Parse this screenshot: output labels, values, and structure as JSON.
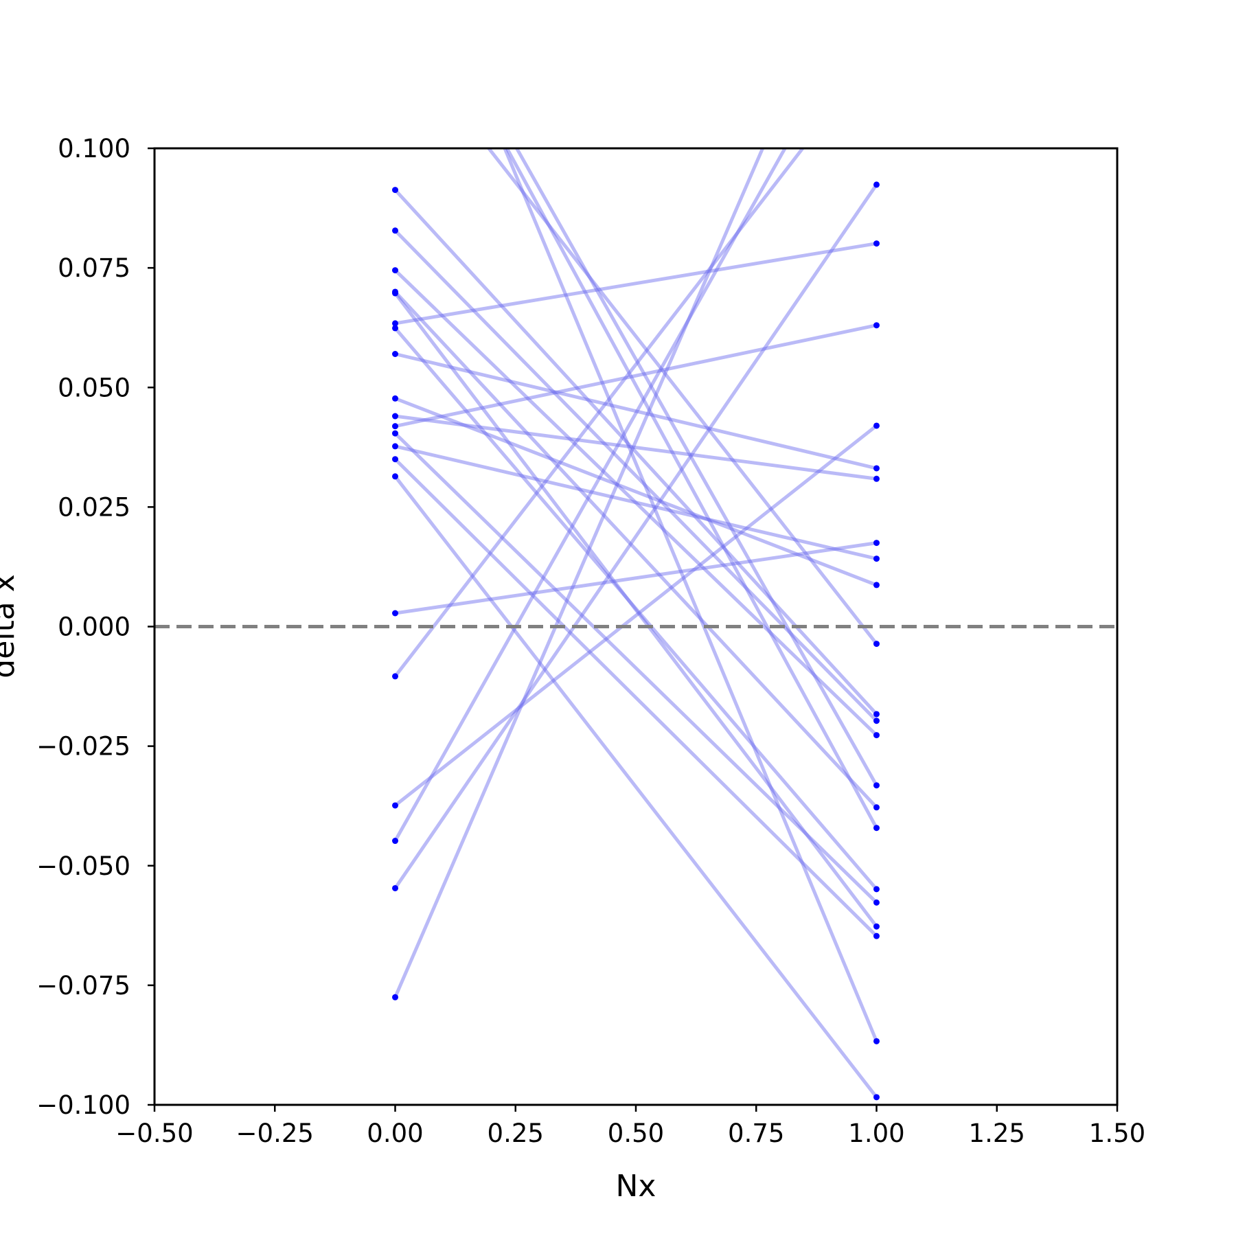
{
  "chart_data": {
    "type": "line",
    "title": "",
    "xlabel": "Nx",
    "ylabel": "delta x",
    "xlim": [
      -0.5,
      1.5
    ],
    "ylim": [
      -0.1,
      0.1
    ],
    "xticks": [
      -0.5,
      -0.25,
      0.0,
      0.25,
      0.5,
      0.75,
      1.0,
      1.25,
      1.5
    ],
    "xtick_labels": [
      "−0.50",
      "−0.25",
      "0.00",
      "0.25",
      "0.50",
      "0.75",
      "1.00",
      "1.25",
      "1.50"
    ],
    "yticks": [
      -0.1,
      -0.075,
      -0.05,
      -0.025,
      0.0,
      0.025,
      0.05,
      0.075,
      0.1
    ],
    "ytick_labels": [
      "−0.100",
      "−0.075",
      "−0.050",
      "−0.025",
      "0.000",
      "0.025",
      "0.050",
      "0.075",
      "0.100"
    ],
    "grid": false,
    "reference_line": {
      "y": 0.0,
      "style": "dashed",
      "color": "#808080"
    },
    "line_color": "#6666ee",
    "point_color": "#0000ff",
    "segments": [
      {
        "y0": 0.0913,
        "y1": -0.0183
      },
      {
        "y0": 0.0828,
        "y1": -0.0197
      },
      {
        "y0": 0.0745,
        "y1": -0.0227
      },
      {
        "y0": 0.07,
        "y1": -0.0378
      },
      {
        "y0": 0.0697,
        "y1": -0.0627
      },
      {
        "y0": 0.0634,
        "y1": 0.0801
      },
      {
        "y0": 0.0624,
        "y1": -0.0549
      },
      {
        "y0": 0.057,
        "y1": 0.0331
      },
      {
        "y0": 0.0477,
        "y1": 0.0087
      },
      {
        "y0": 0.044,
        "y1": 0.0309
      },
      {
        "y0": 0.0419,
        "y1": 0.063
      },
      {
        "y0": 0.0404,
        "y1": -0.0577
      },
      {
        "y0": 0.0377,
        "y1": 0.0142
      },
      {
        "y0": 0.035,
        "y1": -0.0647
      },
      {
        "y0": 0.0314,
        "y1": -0.0984
      },
      {
        "y0": 0.0028,
        "y1": 0.0175
      },
      {
        "y0": -0.0104,
        "y1": 0.12
      },
      {
        "y0": -0.0374,
        "y1": 0.042
      },
      {
        "y0": -0.0448,
        "y1": 0.134
      },
      {
        "y0": -0.0547,
        "y1": 0.0924
      },
      {
        "y0": -0.0775,
        "y1": 0.155
      },
      {
        "y0": 0.143,
        "y1": -0.0421
      },
      {
        "y0": 0.125,
        "y1": -0.0036
      },
      {
        "y0": 0.145,
        "y1": -0.0332
      },
      {
        "y0": 0.155,
        "y1": -0.0867
      }
    ]
  }
}
